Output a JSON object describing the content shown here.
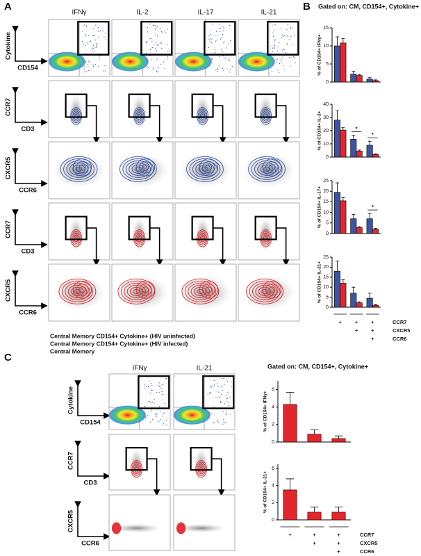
{
  "figure": {
    "panel_a": {
      "label": "A",
      "columns": [
        "IFNγ",
        "IL-2",
        "IL-17",
        "IL-21"
      ],
      "rows": [
        {
          "y_label": "Cytokine",
          "x_label": "CD154"
        },
        {
          "y_label": "CCR7",
          "x_label": "CD3"
        },
        {
          "y_label": "CXCR5",
          "x_label": "CCR6"
        },
        {
          "y_label": "CCR7",
          "x_label": "CD3"
        },
        {
          "y_label": "CXCR5",
          "x_label": "CCR6"
        }
      ],
      "legend": [
        {
          "text": "Central Memory CD154+ Cytokine+ (HIV uninfected)",
          "color": "#3b54a5"
        },
        {
          "text": "Central Memory CD154+ Cytokine+ (HIV infected)",
          "color": "#e3262b"
        },
        {
          "text": "Central Memory",
          "color": "#8a8a8a"
        }
      ]
    },
    "panel_b": {
      "label": "B",
      "title": "Gated on:  CM, CD154+, Cytokine+",
      "markers": [
        {
          "name": "CCR7",
          "signs": [
            "+",
            "+",
            "+"
          ]
        },
        {
          "name": "CXCR5",
          "signs": [
            null,
            "+",
            "+"
          ]
        },
        {
          "name": "CCR6",
          "signs": [
            null,
            null,
            "+"
          ]
        }
      ]
    },
    "panel_c": {
      "label": "C",
      "title": "Gated on:  CM, CD154+, Cytokine+",
      "columns": [
        "IFNγ",
        "IL-21"
      ],
      "rows": [
        {
          "y_label": "Cytokine",
          "x_label": "CD154"
        },
        {
          "y_label": "CCR7",
          "x_label": "CD3"
        },
        {
          "y_label": "CXCR5",
          "x_label": "CCR6"
        }
      ],
      "markers": [
        {
          "name": "CCR7",
          "signs": [
            "+",
            "+",
            "+"
          ]
        },
        {
          "name": "CXCR5",
          "signs": [
            null,
            "+",
            "+"
          ]
        },
        {
          "name": "CCR6",
          "signs": [
            null,
            null,
            "+"
          ]
        }
      ]
    }
  },
  "chart_data": [
    {
      "type": "bar",
      "y_label": "% of CD154+ IFNγ+",
      "ylim": [
        0,
        15
      ],
      "yticks": [
        0,
        5,
        10,
        15
      ],
      "series": [
        {
          "color": "#3b54a5",
          "values": [
            10,
            2.2,
            0.8
          ],
          "errors": [
            2.5,
            0.8,
            0.4
          ]
        },
        {
          "color": "#e3262b",
          "values": [
            10.8,
            1.8,
            0.4
          ],
          "errors": [
            1.2,
            0.3,
            0.2
          ]
        }
      ]
    },
    {
      "type": "bar",
      "y_label": "% of CD154+ IL-2+",
      "ylim": [
        0,
        40
      ],
      "yticks": [
        0,
        10,
        20,
        30,
        40
      ],
      "series": [
        {
          "color": "#3b54a5",
          "values": [
            28,
            13.5,
            9
          ],
          "errors": [
            7,
            3,
            3
          ]
        },
        {
          "color": "#e3262b",
          "values": [
            20.5,
            4.5,
            2
          ],
          "errors": [
            2,
            0.8,
            0.5
          ]
        }
      ],
      "significance": [
        null,
        "*",
        "*"
      ]
    },
    {
      "type": "bar",
      "y_label": "% of CD154+ IL-17+",
      "ylim": [
        0,
        25
      ],
      "yticks": [
        0,
        5,
        10,
        15,
        20,
        25
      ],
      "series": [
        {
          "color": "#3b54a5",
          "values": [
            19.5,
            7,
            7
          ],
          "errors": [
            4.5,
            2,
            2.5
          ]
        },
        {
          "color": "#e3262b",
          "values": [
            15.5,
            2.8,
            2
          ],
          "errors": [
            1.5,
            0.5,
            0.4
          ]
        }
      ],
      "significance": [
        null,
        null,
        "*"
      ]
    },
    {
      "type": "bar",
      "y_label": "% of CD154+ IL-21+",
      "ylim": [
        0,
        25
      ],
      "yticks": [
        0,
        5,
        10,
        15,
        20,
        25
      ],
      "series": [
        {
          "color": "#3b54a5",
          "values": [
            18,
            7,
            4.5
          ],
          "errors": [
            5,
            3,
            2.5
          ]
        },
        {
          "color": "#e3262b",
          "values": [
            12,
            2.2,
            1
          ],
          "errors": [
            1.8,
            0.5,
            0.3
          ]
        }
      ]
    },
    {
      "type": "bar",
      "y_label": "% of CD154+ IFNγ+",
      "ylim": [
        0,
        7
      ],
      "yticks": [
        0,
        2,
        4,
        6
      ],
      "series": [
        {
          "color": "#e3262b",
          "values": [
            4.3,
            0.9,
            0.4
          ],
          "errors": [
            1.4,
            0.5,
            0.3
          ]
        }
      ]
    },
    {
      "type": "bar",
      "y_label": "% of CD154+ IL-21+",
      "ylim": [
        0,
        6.5
      ],
      "yticks": [
        0,
        2,
        4,
        6
      ],
      "series": [
        {
          "color": "#e3262b",
          "values": [
            3.5,
            0.9,
            0.9
          ],
          "errors": [
            1.3,
            0.6,
            0.6
          ]
        }
      ]
    }
  ]
}
